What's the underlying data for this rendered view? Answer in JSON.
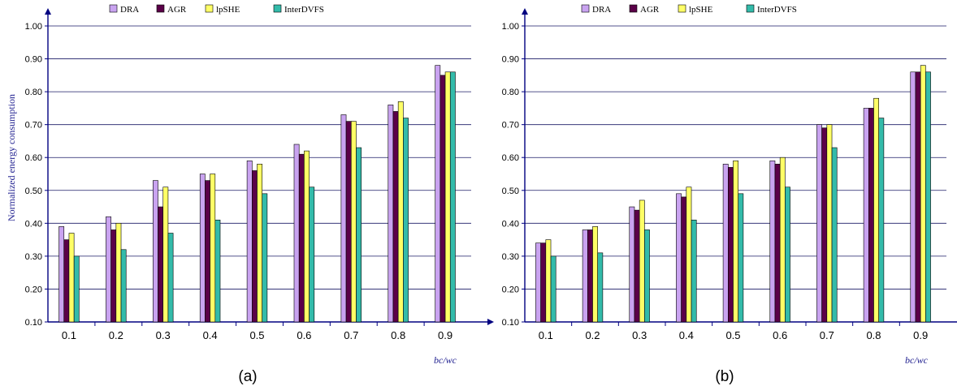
{
  "colors": {
    "DRA": "#c9a3f0",
    "AGR": "#5a0048",
    "lpSHE": "#ffff66",
    "InterDVFS": "#33bbaa",
    "axis": "#000080",
    "grid": "#1a1a66"
  },
  "chart_data": [
    {
      "type": "bar",
      "panel_label": "(a)",
      "ylabel": "Normalized energy consumption",
      "xlabel": "bc/wc",
      "ylim": [
        0.1,
        1.0
      ],
      "yticks": [
        "0.10",
        "0.20",
        "0.30",
        "0.40",
        "0.50",
        "0.60",
        "0.70",
        "0.80",
        "0.90",
        "1.00"
      ],
      "grid": true,
      "legend_position": "top",
      "categories": [
        "0.1",
        "0.2",
        "0.3",
        "0.4",
        "0.5",
        "0.6",
        "0.7",
        "0.8",
        "0.9"
      ],
      "series": [
        {
          "name": "DRA",
          "values": [
            0.39,
            0.42,
            0.53,
            0.55,
            0.59,
            0.64,
            0.73,
            0.76,
            0.88
          ]
        },
        {
          "name": "AGR",
          "values": [
            0.35,
            0.38,
            0.45,
            0.53,
            0.56,
            0.61,
            0.71,
            0.74,
            0.85
          ]
        },
        {
          "name": "lpSHE",
          "values": [
            0.37,
            0.4,
            0.51,
            0.55,
            0.58,
            0.62,
            0.71,
            0.77,
            0.86
          ]
        },
        {
          "name": "InterDVFS",
          "values": [
            0.3,
            0.32,
            0.37,
            0.41,
            0.49,
            0.51,
            0.63,
            0.72,
            0.86
          ]
        }
      ]
    },
    {
      "type": "bar",
      "panel_label": "(b)",
      "ylabel": "",
      "xlabel": "bc/wc",
      "ylim": [
        0.1,
        1.0
      ],
      "yticks": [
        "0.10",
        "0.20",
        "0.30",
        "0.40",
        "0.50",
        "0.60",
        "0.70",
        "0.80",
        "0.90",
        "1.00"
      ],
      "grid": true,
      "legend_position": "top",
      "categories": [
        "0.1",
        "0.2",
        "0.3",
        "0.4",
        "0.5",
        "0.6",
        "0.7",
        "0.8",
        "0.9"
      ],
      "series": [
        {
          "name": "DRA",
          "values": [
            0.34,
            0.38,
            0.45,
            0.49,
            0.58,
            0.59,
            0.7,
            0.75,
            0.86
          ]
        },
        {
          "name": "AGR",
          "values": [
            0.34,
            0.38,
            0.44,
            0.48,
            0.57,
            0.58,
            0.69,
            0.75,
            0.86
          ]
        },
        {
          "name": "lpSHE",
          "values": [
            0.35,
            0.39,
            0.47,
            0.51,
            0.59,
            0.6,
            0.7,
            0.78,
            0.88
          ]
        },
        {
          "name": "InterDVFS",
          "values": [
            0.3,
            0.31,
            0.38,
            0.41,
            0.49,
            0.51,
            0.63,
            0.72,
            0.86
          ]
        }
      ]
    }
  ]
}
